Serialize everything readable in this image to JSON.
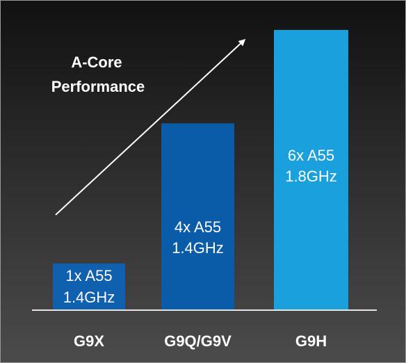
{
  "chart_data": {
    "type": "bar",
    "title": "",
    "xlabel": "",
    "ylabel": "",
    "categories": [
      "G9X",
      "G9Q/G9V",
      "G9H"
    ],
    "series": [
      {
        "values": [
          1,
          4,
          6
        ],
        "labels": [
          [
            "1x A55",
            "1.4GHz"
          ],
          [
            "4x A55",
            "1.4GHz"
          ],
          [
            "6x A55",
            "1.8GHz"
          ]
        ],
        "colors": [
          "#1060b0",
          "#0b5ca8",
          "#1aa0dc"
        ]
      }
    ],
    "ylim": [
      0,
      6.15
    ],
    "grid": false,
    "legend": "none",
    "annotation": {
      "lines": [
        "A-Core",
        "Performance"
      ],
      "arrow": "diagonal-up-right"
    },
    "axis_color": "#e6e6e6",
    "text_color": "#ffffff"
  }
}
